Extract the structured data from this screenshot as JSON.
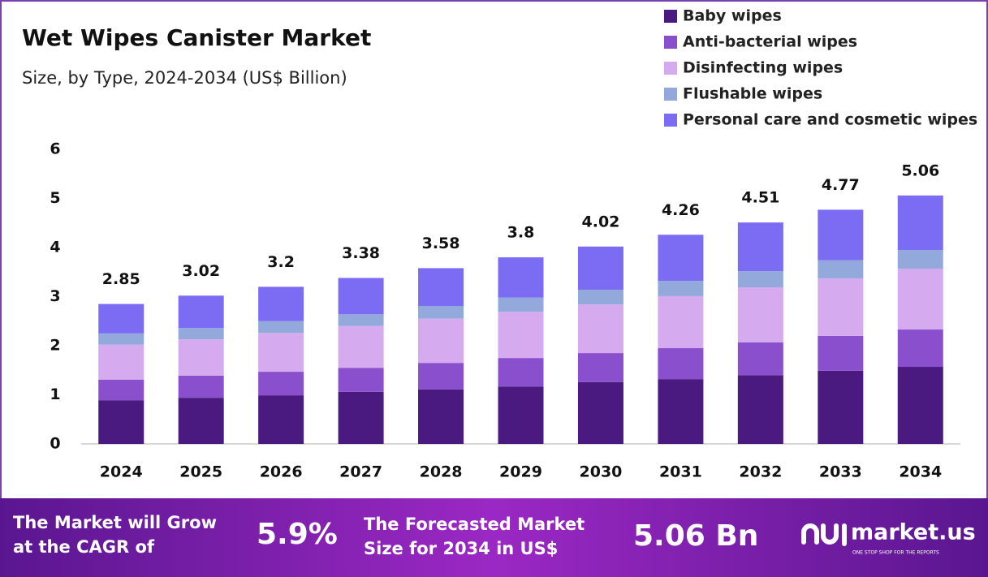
{
  "chart_data": {
    "type": "stacked-bar",
    "title": "Wet Wipes Canister Market",
    "subtitle": "Size, by Type, 2024-2034 (US$ Billion)",
    "categories": [
      "2024",
      "2025",
      "2026",
      "2027",
      "2028",
      "2029",
      "2030",
      "2031",
      "2032",
      "2033",
      "2034"
    ],
    "series": [
      {
        "name": "Baby wipes",
        "color": "#4b1a80",
        "values": [
          0.89,
          0.94,
          0.99,
          1.06,
          1.11,
          1.17,
          1.26,
          1.32,
          1.4,
          1.49,
          1.57
        ]
      },
      {
        "name": "Anti-bacterial wipes",
        "color": "#8a4fcc",
        "values": [
          0.42,
          0.45,
          0.48,
          0.49,
          0.54,
          0.58,
          0.59,
          0.63,
          0.67,
          0.71,
          0.76
        ]
      },
      {
        "name": "Disinfecting wipes",
        "color": "#d5aaee",
        "values": [
          0.71,
          0.74,
          0.79,
          0.85,
          0.9,
          0.94,
          0.99,
          1.06,
          1.12,
          1.17,
          1.24
        ]
      },
      {
        "name": "Flushable wipes",
        "color": "#93a9dc",
        "values": [
          0.23,
          0.23,
          0.24,
          0.24,
          0.26,
          0.29,
          0.3,
          0.31,
          0.33,
          0.37,
          0.38
        ]
      },
      {
        "name": "Personal care and cosmetic wipes",
        "color": "#7c6cf4",
        "values": [
          0.6,
          0.66,
          0.7,
          0.74,
          0.77,
          0.82,
          0.88,
          0.94,
          0.99,
          1.03,
          1.11
        ]
      }
    ],
    "totals": [
      2.85,
      3.02,
      3.2,
      3.38,
      3.58,
      3.8,
      4.02,
      4.26,
      4.51,
      4.77,
      5.06
    ],
    "ylim": [
      0,
      6
    ],
    "yticks": [
      0,
      1,
      2,
      3,
      4,
      5,
      6
    ],
    "grid": false
  },
  "footer": {
    "cagr_label": [
      "The Market will Grow",
      "at the CAGR of"
    ],
    "cagr_value": "5.9%",
    "forecast_label": [
      "The Forecasted Market",
      "Size for 2034 in US$"
    ],
    "forecast_value": "5.06 Bn",
    "brand": "market.us",
    "tagline": "ONE STOP SHOP FOR THE REPORTS"
  }
}
